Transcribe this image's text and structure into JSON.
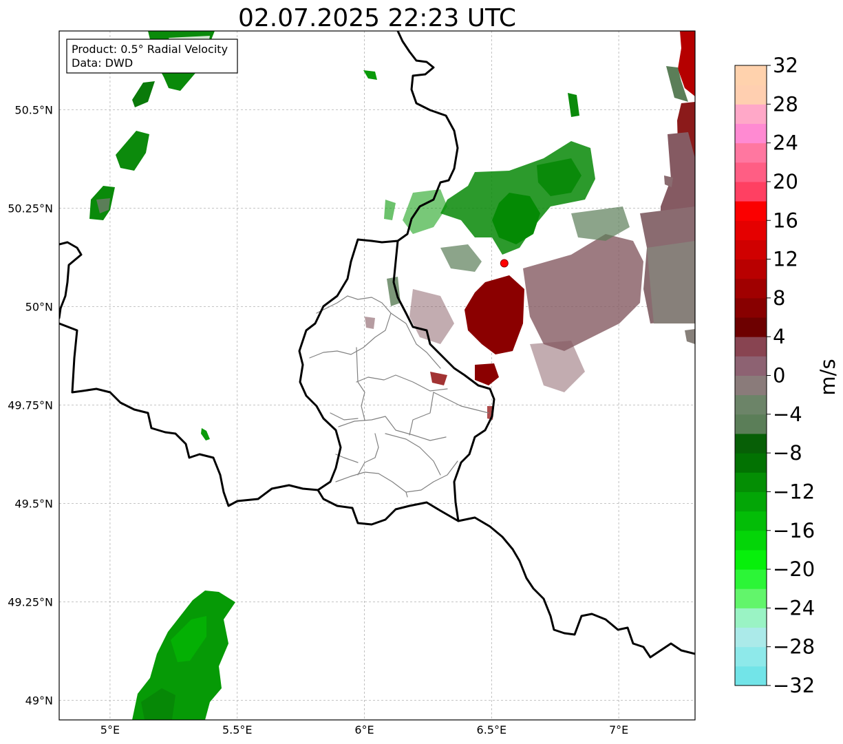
{
  "title": "02.07.2025 22:23 UTC",
  "info_box": {
    "product_line": "Product: 0.5° Radial Velocity",
    "data_line": "Data: DWD"
  },
  "map": {
    "lon_range": [
      4.8,
      7.3
    ],
    "lat_range": [
      48.95,
      50.7
    ],
    "x_ticks": [
      {
        "value": 5.0,
        "label": "5°E"
      },
      {
        "value": 5.5,
        "label": "5.5°E"
      },
      {
        "value": 6.0,
        "label": "6°E"
      },
      {
        "value": 6.5,
        "label": "6.5°E"
      },
      {
        "value": 7.0,
        "label": "7°E"
      }
    ],
    "y_ticks": [
      {
        "value": 49.0,
        "label": "49°N"
      },
      {
        "value": 49.25,
        "label": "49.25°N"
      },
      {
        "value": 49.5,
        "label": "49.5°N"
      },
      {
        "value": 49.75,
        "label": "49.75°N"
      },
      {
        "value": 50.0,
        "label": "50°N"
      },
      {
        "value": 50.25,
        "label": "50.25°N"
      },
      {
        "value": 50.5,
        "label": "50.5°N"
      }
    ],
    "grid": true,
    "radar_site": {
      "lon": 6.55,
      "lat": 50.11,
      "color": "#ff0000"
    }
  },
  "colorbar": {
    "label": "m/s",
    "range": [
      -32,
      32
    ],
    "step": 4,
    "tick_labels": [
      "32",
      "28",
      "24",
      "20",
      "16",
      "12",
      "8",
      "4",
      "0",
      "−4",
      "−8",
      "−12",
      "−16",
      "−20",
      "−24",
      "−28",
      "−32"
    ],
    "colors_bottom_to_top": [
      "#72e4e8",
      "#8ee9ea",
      "#abeae9",
      "#9af3c4",
      "#62f56b",
      "#2cf537",
      "#07f00b",
      "#04d508",
      "#03bd07",
      "#03a606",
      "#048e04",
      "#027202",
      "#075f06",
      "#5b7e58",
      "#6c8468",
      "#8a7b7a",
      "#8d6272",
      "#884451",
      "#6d0000",
      "#880000",
      "#a00000",
      "#b90000",
      "#d00000",
      "#e50000",
      "#fb0000",
      "#ff4062",
      "#ff5e84",
      "#ff77a0",
      "#ff8ad2",
      "#ffa8c8",
      "#ffcfb0",
      "#ffd2ad"
    ]
  }
}
